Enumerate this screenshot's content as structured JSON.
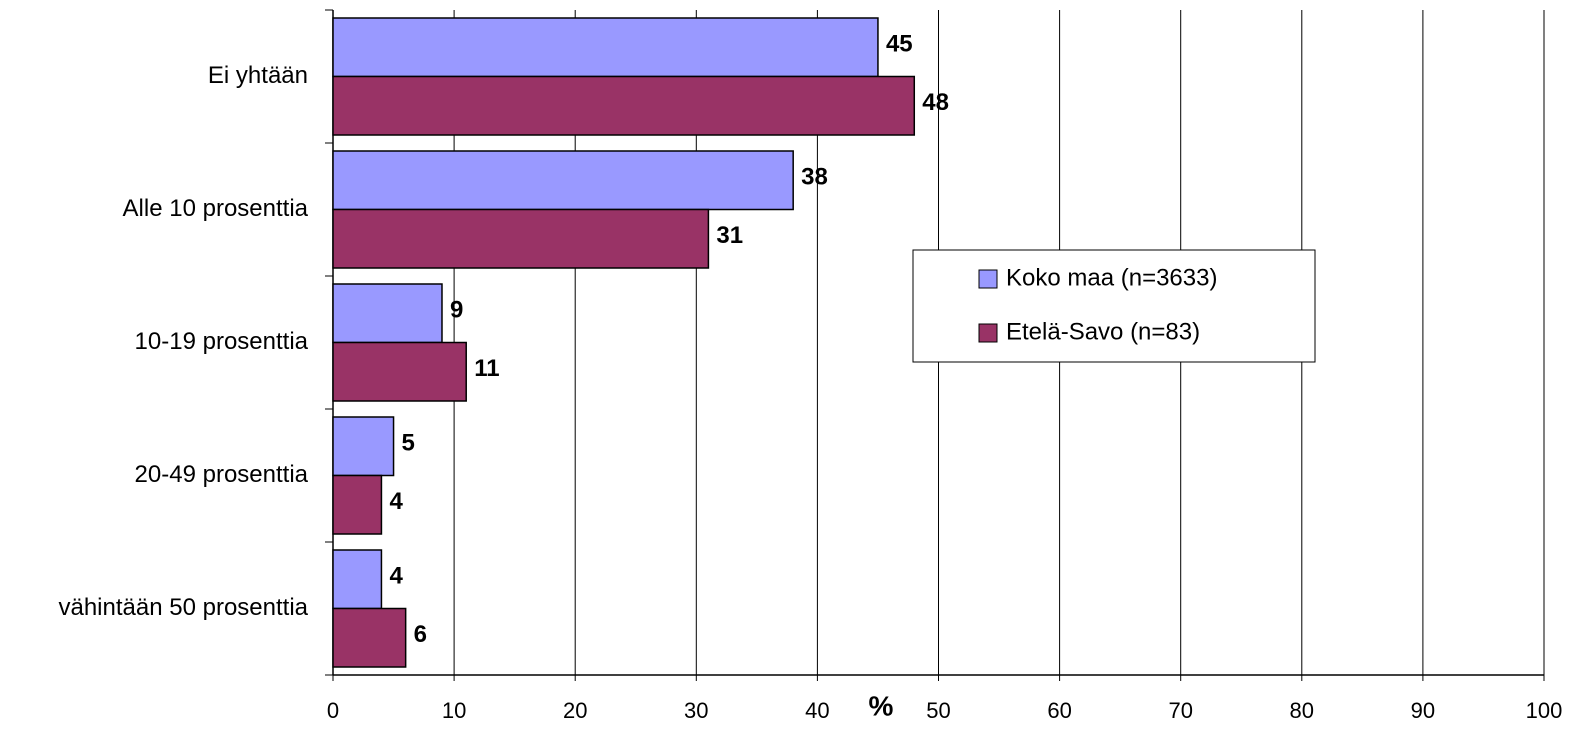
{
  "chart_data": {
    "type": "hbar",
    "x_label": "%",
    "categories": [
      "Ei yhtään",
      "Alle 10 prosenttia",
      "10-19 prosenttia",
      "20-49 prosenttia",
      "vähintään 50 prosenttia"
    ],
    "series": [
      {
        "name": "Koko maa (n=3633)",
        "color": "#9999ff",
        "values": [
          45,
          38,
          9,
          5,
          4
        ]
      },
      {
        "name": "Etelä-Savo (n=83)",
        "color": "#993366",
        "values": [
          48,
          31,
          11,
          4,
          6
        ]
      }
    ],
    "xlim": [
      0,
      100
    ],
    "xticks": [
      0,
      10,
      20,
      30,
      40,
      50,
      60,
      70,
      80,
      90,
      100
    ],
    "grid": true,
    "legend": "center-right"
  }
}
